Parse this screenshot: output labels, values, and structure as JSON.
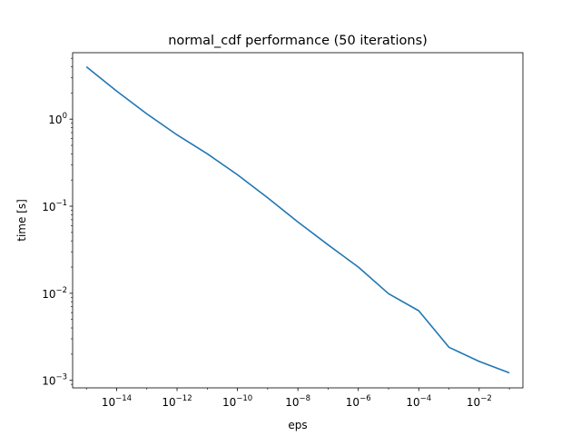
{
  "chart_data": {
    "type": "line",
    "title": "normal_cdf performance (50 iterations)",
    "xlabel": "eps",
    "ylabel": "time [s]",
    "xscale": "log",
    "yscale": "log",
    "xlim": [
      3.5e-16,
      0.28
    ],
    "ylim": [
      0.00082,
      5.8
    ],
    "grid": false,
    "color": "#1f77b4",
    "x_ticks": [
      {
        "value": 1e-14,
        "base": "10",
        "exp": "−14"
      },
      {
        "value": 1e-12,
        "base": "10",
        "exp": "−12"
      },
      {
        "value": 1e-10,
        "base": "10",
        "exp": "−10"
      },
      {
        "value": 1e-08,
        "base": "10",
        "exp": "−8"
      },
      {
        "value": 1e-06,
        "base": "10",
        "exp": "−6"
      },
      {
        "value": 0.0001,
        "base": "10",
        "exp": "−4"
      },
      {
        "value": 0.01,
        "base": "10",
        "exp": "−2"
      }
    ],
    "y_ticks": [
      {
        "value": 1,
        "base": "10",
        "exp": "0"
      },
      {
        "value": 0.1,
        "base": "10",
        "exp": "−1"
      },
      {
        "value": 0.01,
        "base": "10",
        "exp": "−2"
      },
      {
        "value": 0.001,
        "base": "10",
        "exp": "−3"
      }
    ],
    "series": [
      {
        "x": [
          1e-15,
          1e-14,
          1e-13,
          1e-12,
          1e-11,
          1e-10,
          1e-09,
          1e-08,
          1e-07,
          1e-06,
          1e-05,
          0.0001,
          0.001,
          0.01,
          0.1
        ],
        "y": [
          4.0,
          2.1,
          1.15,
          0.66,
          0.4,
          0.23,
          0.125,
          0.066,
          0.036,
          0.02,
          0.0099,
          0.0063,
          0.0024,
          0.00165,
          0.00122
        ]
      }
    ]
  }
}
